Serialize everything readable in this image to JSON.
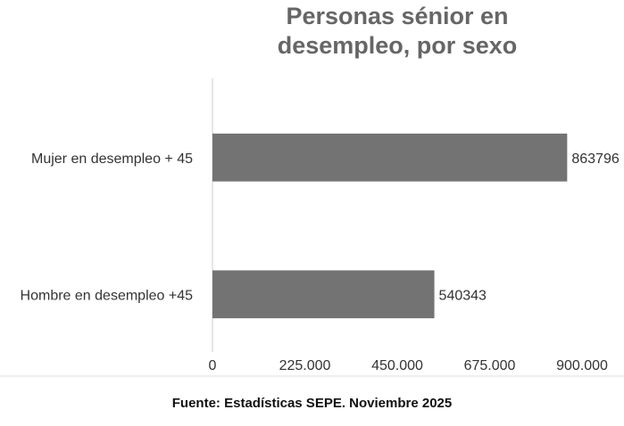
{
  "chart_data": {
    "type": "bar",
    "orientation": "horizontal",
    "title": "Personas sénior en desempleo, por sexo",
    "categories": [
      "Mujer en desempleo + 45",
      "Hombre en desempleo +45"
    ],
    "values": [
      863796,
      540343
    ],
    "color": "#737373",
    "xlim": [
      0,
      900000
    ],
    "xticks": [
      0,
      {
        "value": 225000,
        "label": "225.000"
      },
      {
        "value": 450000,
        "label": "450.000"
      },
      {
        "value": 675000,
        "label": "675.000"
      },
      {
        "value": 900000,
        "label": "900.000"
      }
    ],
    "grid": false,
    "source": "Fuente: Estadísticas SEPE. Noviembre 2025"
  }
}
